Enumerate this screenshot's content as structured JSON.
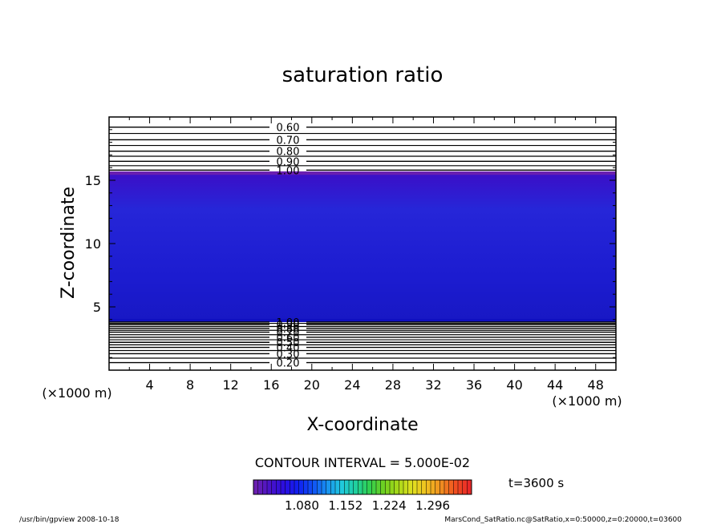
{
  "chart_data": {
    "type": "contour",
    "title": "saturation ratio",
    "xlabel": "X-coordinate",
    "ylabel": "Z-coordinate",
    "x_unit": "(×1000 m)",
    "z_unit": "(×1000 m)",
    "xlim": [
      0,
      50
    ],
    "ylim": [
      0,
      20
    ],
    "x_ticks": [
      4,
      8,
      12,
      16,
      20,
      24,
      28,
      32,
      36,
      40,
      44,
      48
    ],
    "y_ticks": [
      5,
      10,
      15
    ],
    "contour_interval_text": "CONTOUR INTERVAL = 5.000E-02",
    "time_text": "t=3600 s",
    "colorbar_labels": [
      "1.080",
      "1.152",
      "1.224",
      "1.296"
    ],
    "colorbar_range": [
      1.0,
      1.36
    ],
    "colorbar_colors": [
      "#6a1fb0",
      "#4a12c8",
      "#2a0ee0",
      "#1020f0",
      "#1050f5",
      "#1890f0",
      "#20c8e0",
      "#20d0a0",
      "#30d050",
      "#70d020",
      "#a8d818",
      "#e0e020",
      "#f0c020",
      "#f09020",
      "#f05020",
      "#e82828"
    ],
    "fill_region": {
      "z_bottom": 3.8,
      "z_top": 15.7,
      "color_inner": "#2222d8",
      "color_edge": "#1010c0",
      "color_top": "#6a1fb0"
    },
    "upper_contours": [
      {
        "level": "0.60",
        "z": 19.2
      },
      {
        "level": "0.70",
        "z": 18.2
      },
      {
        "level": "0.80",
        "z": 17.3
      },
      {
        "level": "0.90",
        "z": 16.5
      },
      {
        "level": "1.00",
        "z": 15.8
      }
    ],
    "lower_contours": [
      {
        "level": "0.20",
        "z": 0.6
      },
      {
        "level": "0.30",
        "z": 1.3
      },
      {
        "level": "0.40",
        "z": 1.8
      },
      {
        "level": "0.50",
        "z": 2.2
      },
      {
        "level": "0.60",
        "z": 2.6
      },
      {
        "level": "0.70",
        "z": 3.0
      },
      {
        "level": "0.80",
        "z": 3.3
      },
      {
        "level": "0.90",
        "z": 3.6
      },
      {
        "level": "1.00",
        "z": 3.8
      }
    ],
    "footer_left": "/usr/bin/gpview   2008-10-18",
    "footer_right": "MarsCond_SatRatio.nc@SatRatio,x=0:50000,z=0:20000,t=03600"
  }
}
